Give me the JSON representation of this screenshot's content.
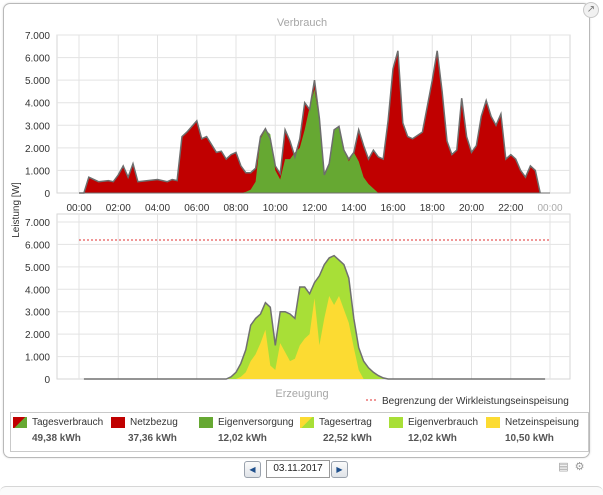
{
  "chart_data": {
    "type": "area",
    "ylabel": "Leistung [W]",
    "x_ticks": [
      "00:00",
      "02:00",
      "04:00",
      "06:00",
      "08:00",
      "10:00",
      "12:00",
      "14:00",
      "16:00",
      "18:00",
      "20:00",
      "22:00",
      "00:00"
    ],
    "y_ticks": [
      "0",
      "1.000",
      "2.000",
      "3.000",
      "4.000",
      "5.000",
      "6.000",
      "7.000"
    ],
    "ylim": [
      0,
      7000
    ],
    "xlim_hours": [
      0,
      24
    ],
    "panels": [
      {
        "title": "Verbrauch",
        "hours": [
          0,
          0.25,
          0.5,
          1,
          1.5,
          1.75,
          2,
          2.25,
          2.5,
          2.75,
          3,
          3.5,
          4,
          4.5,
          4.75,
          5,
          5.25,
          5.5,
          6,
          6.25,
          6.5,
          7,
          7.25,
          7.5,
          7.75,
          8,
          8.25,
          8.5,
          8.75,
          9,
          9.25,
          9.5,
          9.75,
          10,
          10.25,
          10.5,
          10.75,
          11,
          11.25,
          11.5,
          11.75,
          12,
          12.25,
          12.5,
          12.75,
          13,
          13.25,
          13.5,
          13.75,
          14,
          14.25,
          14.5,
          14.75,
          15,
          15.25,
          15.5,
          15.75,
          16,
          16.25,
          16.5,
          16.75,
          17,
          17.5,
          18,
          18.25,
          18.5,
          18.75,
          19,
          19.25,
          19.5,
          19.75,
          20,
          20.25,
          20.5,
          20.75,
          21,
          21.25,
          21.5,
          21.75,
          22,
          22.25,
          22.5,
          22.75,
          23,
          23.25,
          23.5,
          23.75,
          24
        ],
        "series": [
          {
            "name": "Tagesverbrauch",
            "color": "#6d6d6d",
            "values": [
              0,
              0,
              700,
              500,
              550,
              500,
              800,
              1200,
              700,
              1300,
              500,
              550,
              600,
              500,
              600,
              550,
              2500,
              2700,
              3200,
              2400,
              2500,
              1800,
              1850,
              1500,
              1700,
              1800,
              1200,
              900,
              900,
              1100,
              2500,
              2850,
              2400,
              1200,
              850,
              2800,
              2300,
              1600,
              2400,
              4000,
              3700,
              5000,
              3300,
              800,
              1300,
              2800,
              2950,
              1900,
              1500,
              1800,
              2800,
              2100,
              1500,
              1900,
              1600,
              1500,
              3200,
              5500,
              6300,
              3100,
              2500,
              2400,
              2700,
              5000,
              6300,
              4500,
              2300,
              1700,
              1900,
              4200,
              2500,
              1800,
              2100,
              3400,
              4100,
              3400,
              3000,
              3500,
              1500,
              1700,
              1500,
              1000,
              700,
              1200,
              1000,
              0
            ]
          },
          {
            "name": "Eigenversorgung",
            "color": "#66a832",
            "values": [
              0,
              0,
              0,
              0,
              0,
              0,
              0,
              0,
              0,
              0,
              0,
              0,
              0,
              0,
              0,
              0,
              0,
              0,
              0,
              0,
              0,
              0,
              0,
              0,
              0,
              0,
              0,
              50,
              150,
              500,
              2400,
              2800,
              2600,
              1000,
              600,
              1500,
              1500,
              1800,
              2000,
              2800,
              3800,
              4600,
              3200,
              900,
              1300,
              2800,
              2950,
              1900,
              1400,
              1800,
              1400,
              700,
              400,
              200,
              0,
              0,
              0,
              0,
              0,
              0,
              0,
              0,
              0,
              0,
              0,
              0,
              0,
              0,
              0,
              0,
              0,
              0,
              0,
              0,
              0,
              0,
              0,
              0,
              0,
              0,
              0,
              0,
              0,
              0,
              0,
              0
            ]
          }
        ]
      },
      {
        "title": "Erzeugung",
        "limit_label": "Begrenzung der Wirkleistungseinspeisung",
        "limit_value": 6200,
        "hours": [
          0.25,
          7.5,
          7.75,
          8,
          8.25,
          8.5,
          8.75,
          9,
          9.25,
          9.5,
          9.75,
          10,
          10.25,
          10.5,
          10.75,
          11,
          11.25,
          11.5,
          11.75,
          12,
          12.25,
          12.5,
          12.75,
          13,
          13.25,
          13.5,
          13.75,
          14,
          14.25,
          14.5,
          14.75,
          15,
          15.25,
          15.5,
          15.75,
          16,
          16.25,
          16.5,
          23.75
        ],
        "series": [
          {
            "name": "Tagesertrag",
            "color": "#707070",
            "values": [
              0,
              0,
              100,
              300,
              700,
              1300,
              2400,
              2700,
              2900,
              3400,
              3200,
              1500,
              3000,
              3000,
              2900,
              2700,
              4100,
              4100,
              3800,
              4300,
              4600,
              5100,
              5400,
              5500,
              5300,
              5100,
              4500,
              2700,
              1400,
              800,
              500,
              300,
              150,
              50,
              0,
              0,
              0,
              0,
              0
            ]
          },
          {
            "name": "Eigenverbrauch",
            "color": "#a8df37",
            "values": [
              0,
              0,
              100,
              300,
              700,
              1300,
              2400,
              2700,
              2900,
              3400,
              3200,
              1500,
              3000,
              3000,
              2900,
              2700,
              4100,
              4100,
              3800,
              4300,
              4600,
              5100,
              5400,
              5500,
              5300,
              5100,
              4500,
              2700,
              1400,
              800,
              500,
              300,
              150,
              50,
              0,
              0,
              0,
              0,
              0
            ]
          },
          {
            "name": "Netzeinspeisung",
            "color": "#fcdb32",
            "values": [
              0,
              0,
              0,
              0,
              100,
              300,
              800,
              1100,
              1600,
              2200,
              600,
              400,
              1600,
              1200,
              800,
              900,
              1500,
              1800,
              2000,
              3600,
              1500,
              2700,
              3700,
              3300,
              3700,
              3100,
              2500,
              1400,
              400,
              0,
              0,
              0,
              0,
              0,
              0,
              0,
              0,
              0,
              0
            ]
          }
        ]
      }
    ],
    "legend": [
      {
        "name": "Tagesverbrauch",
        "value": "49,38 kWh",
        "color": "#c00000",
        "color2": "#66a832"
      },
      {
        "name": "Netzbezug",
        "value": "37,36 kWh",
        "color": "#c00000"
      },
      {
        "name": "Eigenversorgung",
        "value": "12,02 kWh",
        "color": "#66a832"
      },
      {
        "name": "Tagesertrag",
        "value": "22,52 kWh",
        "color": "#fcdb32",
        "color2": "#a8df37"
      },
      {
        "name": "Eigenverbrauch",
        "value": "12,02 kWh",
        "color": "#a8df37"
      },
      {
        "name": "Netzeinspeisung",
        "value": "10,50 kWh",
        "color": "#fcdb32"
      }
    ],
    "grid": true,
    "colors": {
      "netzbezug": "#c00000",
      "eigenversorgung": "#66a832",
      "eigenverbrauch": "#a8df37",
      "netzeinspeisung": "#fcdb32",
      "limit": "#e03030"
    }
  },
  "date_nav": {
    "date": "03.11.2017",
    "prev_icon": "arrow-left-icon",
    "next_icon": "arrow-right-icon"
  },
  "tools": {
    "save_icon": "save-icon",
    "settings_icon": "gear-icon"
  }
}
